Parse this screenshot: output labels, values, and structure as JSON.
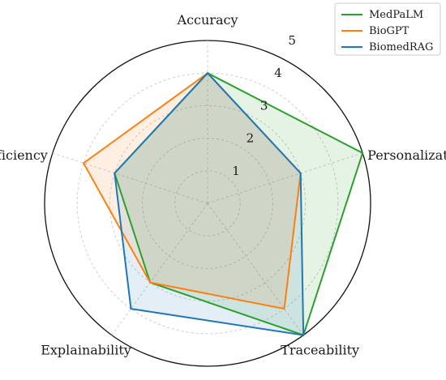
{
  "chart_data": {
    "type": "radar",
    "axes": [
      "Accuracy",
      "Personalization",
      "Traceability",
      "Explainability",
      "Efficiency"
    ],
    "rmax": 5,
    "radial_ticks": [
      1,
      2,
      3,
      4,
      5
    ],
    "grid": true,
    "legend_position": "top-right",
    "series": [
      {
        "name": "MedPaLM",
        "values": [
          4,
          5,
          5,
          3,
          3
        ],
        "color": "#2ca02c"
      },
      {
        "name": "BioGPT",
        "values": [
          4,
          3,
          4,
          3,
          4
        ],
        "color": "#ff7f0e"
      },
      {
        "name": "BiomedRAG",
        "values": [
          4,
          3,
          5,
          4,
          3
        ],
        "color": "#1f77b4"
      }
    ]
  }
}
